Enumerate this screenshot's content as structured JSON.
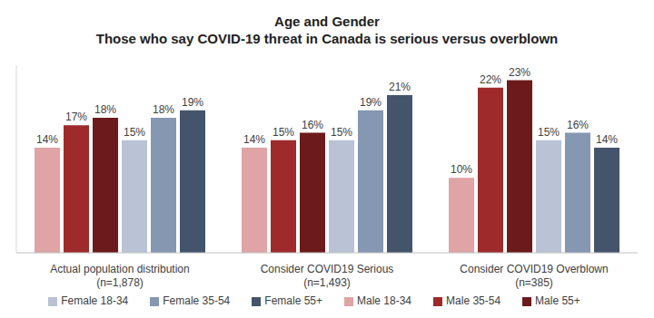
{
  "chart_data": {
    "type": "bar",
    "title": "Age and Gender",
    "subtitle": "Those who say COVID-19 threat in Canada is serious versus overblown",
    "categories": [
      "Actual population distribution (n=1,878)",
      "Consider COVID19 Serious (n=1,493)",
      "Consider COVID19 Overblown (n=385)"
    ],
    "series": [
      {
        "name": "Male 18-34",
        "color": "#e0a3a6",
        "values": [
          14,
          14,
          10
        ],
        "value_labels": [
          "14%",
          "14%",
          "10%"
        ]
      },
      {
        "name": "Male 35-54",
        "color": "#9e2a2b",
        "values": [
          17,
          15,
          22
        ],
        "value_labels": [
          "17%",
          "15%",
          "22%"
        ]
      },
      {
        "name": "Male 55+",
        "color": "#6d1a1c",
        "values": [
          18,
          16,
          23
        ],
        "value_labels": [
          "18%",
          "16%",
          "23%"
        ]
      },
      {
        "name": "Female 18-34",
        "color": "#b9c3d5",
        "values": [
          15,
          15,
          15
        ],
        "value_labels": [
          "15%",
          "15%",
          "15%"
        ]
      },
      {
        "name": "Female 35-54",
        "color": "#8597b1",
        "values": [
          18,
          19,
          16
        ],
        "value_labels": [
          "18%",
          "19%",
          "16%"
        ]
      },
      {
        "name": "Female 55+",
        "color": "#44546a",
        "values": [
          19,
          21,
          14
        ],
        "value_labels": [
          "19%",
          "21%",
          "14%"
        ]
      }
    ],
    "ylim": [
      0,
      25
    ],
    "data_labels": true,
    "tick_labels": "x",
    "legend": "bottom"
  }
}
